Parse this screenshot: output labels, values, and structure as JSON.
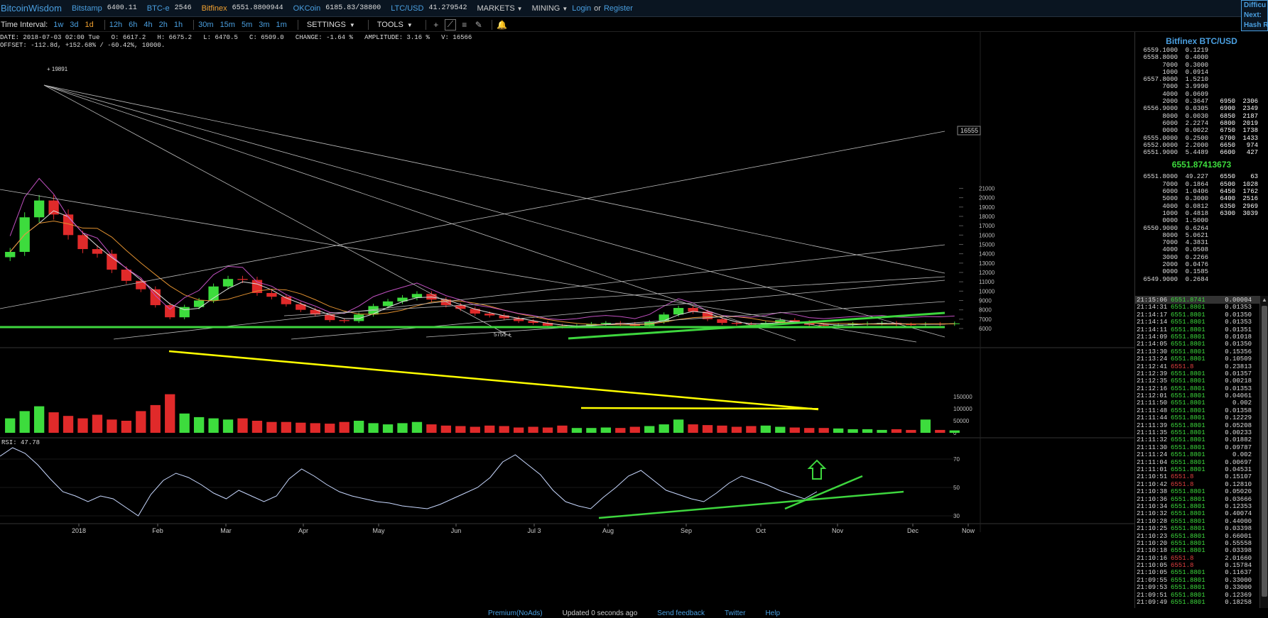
{
  "header": {
    "logo": "BitcoinWisdom",
    "tickers": [
      {
        "name": "Bitstamp",
        "value": "6400.11",
        "active": false
      },
      {
        "name": "BTC-e",
        "value": "2546",
        "active": false
      },
      {
        "name": "Bitfinex",
        "value": "6551.8800944",
        "active": true
      },
      {
        "name": "OKCoin",
        "value": "6185.83/38800",
        "active": false
      },
      {
        "name": "LTC/USD",
        "value": "41.279542",
        "active": false
      }
    ],
    "markets_label": "MARKETS",
    "mining_label": "MINING",
    "login_label": "Login",
    "or_label": "or",
    "register_label": "Register",
    "difficulty_lines": [
      "Difficu",
      "Next:",
      "Hash R"
    ]
  },
  "toolbar": {
    "time_interval_label": "Time Interval:",
    "intervals": [
      "1w",
      "3d",
      "1d",
      "12h",
      "6h",
      "4h",
      "2h",
      "1h",
      "30m",
      "15m",
      "5m",
      "3m",
      "1m"
    ],
    "active_interval": "1d",
    "settings_label": "SETTINGS",
    "tools_label": "TOOLS"
  },
  "info": {
    "line1": "DATE: 2018-07-03 02:00 Tue   O: 6617.2   H: 6675.2   L: 6470.5   C: 6509.0   CHANGE: -1.64 %   AMPLITUDE: 3.16 %   V: 16566",
    "line2": "OFFSET: -112.8d, +152.68% / -60.42%, 10000."
  },
  "chart_data": {
    "type": "line",
    "title": "",
    "price_axis": [
      21000,
      20000,
      19000,
      18000,
      17000,
      16000,
      15000,
      14000,
      13000,
      12000,
      11000,
      10000,
      9000,
      8000,
      7000,
      6000
    ],
    "cursor_price": "16555",
    "high_label": "19891",
    "low_label": "5755",
    "volume_axis": [
      "150000",
      "100000",
      "50000",
      "0"
    ],
    "rsi_label": "RSI: 47.78",
    "rsi_axis": [
      "70",
      "50",
      "30"
    ],
    "x_labels": [
      "2018",
      "Feb",
      "Mar",
      "Apr",
      "May",
      "Jun",
      "Jul 3",
      "Aug",
      "Sep",
      "Oct",
      "Nov",
      "Dec",
      "Now"
    ],
    "price_close": [
      14200,
      17900,
      19700,
      18200,
      16000,
      14500,
      14000,
      12300,
      11100,
      10200,
      8500,
      7200,
      8300,
      9000,
      10500,
      11300,
      11200,
      9800,
      9400,
      8600,
      8000,
      7500,
      6900,
      6800,
      7500,
      8400,
      8900,
      9300,
      9700,
      9100,
      8500,
      8100,
      7600,
      7400,
      7100,
      6800,
      6600,
      6300,
      6200,
      6300,
      6500,
      6600,
      6500,
      6300,
      6700,
      7500,
      8200,
      7800,
      7000,
      6600,
      6500,
      6450,
      6600,
      6900,
      6700,
      6400,
      6300,
      6400,
      6500,
      6550,
      6600,
      6450,
      6420,
      6500,
      6480,
      6550
    ],
    "volume": [
      60000,
      90000,
      110000,
      85000,
      70000,
      60000,
      75000,
      55000,
      50000,
      90000,
      115000,
      160000,
      80000,
      65000,
      60000,
      55000,
      60000,
      50000,
      45000,
      45000,
      42000,
      40000,
      38000,
      45000,
      50000,
      40000,
      35000,
      40000,
      45000,
      35000,
      30000,
      28000,
      25000,
      30000,
      28000,
      22000,
      25000,
      22000,
      30000,
      20000,
      20000,
      22000,
      20000,
      25000,
      28000,
      35000,
      55000,
      35000,
      32000,
      30000,
      25000,
      28000,
      30000,
      25000,
      22000,
      20000,
      20000,
      18000,
      15000,
      15000,
      12000,
      15000,
      12000,
      55000,
      12000,
      10000
    ],
    "rsi": [
      72,
      78,
      74,
      66,
      56,
      47,
      44,
      40,
      44,
      42,
      36,
      30,
      45,
      55,
      60,
      57,
      52,
      46,
      42,
      48,
      44,
      40,
      44,
      56,
      63,
      58,
      52,
      47,
      44,
      42,
      40,
      39,
      37,
      36,
      35,
      38,
      42,
      46,
      50,
      57,
      68,
      73,
      66,
      59,
      48,
      40,
      37,
      35,
      43,
      50,
      58,
      62,
      55,
      48,
      45,
      42,
      40,
      46,
      53,
      58,
      55,
      52,
      48,
      45,
      42,
      47
    ]
  },
  "orderbook": {
    "title": "Bitfinex BTC/USD",
    "asks": [
      [
        "6559.1000",
        "0.1219",
        "",
        ""
      ],
      [
        "6558.8000",
        "0.4000",
        "",
        ""
      ],
      [
        "7000",
        "0.3000",
        "",
        ""
      ],
      [
        "1000",
        "0.0914",
        "",
        ""
      ],
      [
        "6557.8000",
        "1.5210",
        "",
        ""
      ],
      [
        "7000",
        "3.9990",
        "",
        ""
      ],
      [
        "4000",
        "0.0609",
        "",
        ""
      ],
      [
        "2000",
        "0.3647",
        "6950",
        "2306"
      ],
      [
        "6556.9000",
        "0.0305",
        "6900",
        "2349"
      ],
      [
        "8000",
        "0.0030",
        "6850",
        "2187"
      ],
      [
        "6000",
        "2.2274",
        "6800",
        "2019"
      ],
      [
        "0000",
        "0.0022",
        "6750",
        "1738"
      ],
      [
        "6555.0000",
        "0.2500",
        "6700",
        "1433"
      ],
      [
        "6552.0000",
        "2.2000",
        "6650",
        "974"
      ],
      [
        "6551.9000",
        "5.4489",
        "6600",
        "427"
      ]
    ],
    "last_price": "6551.87413673",
    "bids": [
      [
        "6551.8000",
        "49.227",
        "6550",
        "63"
      ],
      [
        "7000",
        "0.1864",
        "6500",
        "1028"
      ],
      [
        "6000",
        "1.0406",
        "6450",
        "1762"
      ],
      [
        "5000",
        "0.3000",
        "6400",
        "2516"
      ],
      [
        "4000",
        "0.0812",
        "6350",
        "2969"
      ],
      [
        "1000",
        "0.4818",
        "6300",
        "3039"
      ],
      [
        "0000",
        "1.5000",
        "",
        ""
      ],
      [
        "6550.9000",
        "0.6264",
        "",
        ""
      ],
      [
        "8000",
        "5.0621",
        "",
        ""
      ],
      [
        "7000",
        "4.3831",
        "",
        ""
      ],
      [
        "4000",
        "0.0508",
        "",
        ""
      ],
      [
        "3000",
        "0.2266",
        "",
        ""
      ],
      [
        "2000",
        "0.0476",
        "",
        ""
      ],
      [
        "0000",
        "0.1585",
        "",
        ""
      ],
      [
        "6549.9000",
        "0.2684",
        "",
        ""
      ]
    ]
  },
  "trades": [
    [
      "21:15:06",
      "6551.8741",
      "0.00004",
      "up"
    ],
    [
      "21:14:31",
      "6551.8801",
      "0.01353",
      "up"
    ],
    [
      "21:14:17",
      "6551.8801",
      "0.01350",
      "up"
    ],
    [
      "21:14:14",
      "6551.8801",
      "0.01353",
      "up"
    ],
    [
      "21:14:11",
      "6551.8801",
      "0.01351",
      "up"
    ],
    [
      "21:14:09",
      "6551.8801",
      "0.01018",
      "up"
    ],
    [
      "21:14:05",
      "6551.8801",
      "0.01350",
      "up"
    ],
    [
      "21:13:30",
      "6551.8801",
      "0.15356",
      "up"
    ],
    [
      "21:13:24",
      "6551.8801",
      "0.10509",
      "up"
    ],
    [
      "21:12:41",
      "6551.8",
      "0.23813",
      "dn"
    ],
    [
      "21:12:39",
      "6551.8801",
      "0.01357",
      "up"
    ],
    [
      "21:12:35",
      "6551.8801",
      "0.00218",
      "up"
    ],
    [
      "21:12:16",
      "6551.8801",
      "0.01353",
      "up"
    ],
    [
      "21:12:01",
      "6551.8801",
      "0.04061",
      "up"
    ],
    [
      "21:11:50",
      "6551.8801",
      "0.002",
      "up"
    ],
    [
      "21:11:48",
      "6551.8801",
      "0.01358",
      "up"
    ],
    [
      "21:11:44",
      "6551.8801",
      "0.12229",
      "up"
    ],
    [
      "21:11:39",
      "6551.8801",
      "0.05208",
      "up"
    ],
    [
      "21:11:35",
      "6551.8801",
      "0.00233",
      "up"
    ],
    [
      "21:11:32",
      "6551.8801",
      "0.01882",
      "up"
    ],
    [
      "21:11:30",
      "6551.8801",
      "0.09787",
      "up"
    ],
    [
      "21:11:24",
      "6551.8801",
      "0.002",
      "up"
    ],
    [
      "21:11:04",
      "6551.8801",
      "0.00697",
      "up"
    ],
    [
      "21:11:01",
      "6551.8801",
      "0.04531",
      "up"
    ],
    [
      "21:10:51",
      "6551.8",
      "0.15107",
      "dn"
    ],
    [
      "21:10:42",
      "6551.8",
      "0.12810",
      "dn"
    ],
    [
      "21:10:38",
      "6551.8801",
      "0.05020",
      "up"
    ],
    [
      "21:10:36",
      "6551.8801",
      "0.03666",
      "up"
    ],
    [
      "21:10:34",
      "6551.8801",
      "0.12353",
      "up"
    ],
    [
      "21:10:32",
      "6551.8801",
      "0.40074",
      "up"
    ],
    [
      "21:10:28",
      "6551.8801",
      "0.44000",
      "up"
    ],
    [
      "21:10:25",
      "6551.8801",
      "0.03398",
      "up"
    ],
    [
      "21:10:23",
      "6551.8801",
      "0.66001",
      "up"
    ],
    [
      "21:10:20",
      "6551.8801",
      "0.55558",
      "up"
    ],
    [
      "21:10:18",
      "6551.8801",
      "0.03398",
      "up"
    ],
    [
      "21:10:16",
      "6551.8",
      "2.01660",
      "dn"
    ],
    [
      "21:10:05",
      "6551.8",
      "0.15784",
      "dn"
    ],
    [
      "21:10:05",
      "6551.8801",
      "0.11637",
      "up"
    ],
    [
      "21:09:55",
      "6551.8801",
      "0.33000",
      "up"
    ],
    [
      "21:09:53",
      "6551.8801",
      "0.33000",
      "up"
    ],
    [
      "21:09:51",
      "6551.8801",
      "0.12369",
      "up"
    ],
    [
      "21:09:49",
      "6551.8801",
      "0.18258",
      "up"
    ]
  ],
  "footer": {
    "premium_label": "Premium(NoAds)",
    "updated_label": "Updated 0 seconds ago",
    "feedback_label": "Send feedback",
    "twitter_label": "Twitter",
    "help_label": "Help"
  },
  "colors": {
    "up": "#3ddc3d",
    "down": "#e02a2a",
    "link": "#4a9fe0",
    "active": "#f0a030",
    "trend_green": "#3ed63e",
    "trend_yellow": "#ffff00"
  }
}
